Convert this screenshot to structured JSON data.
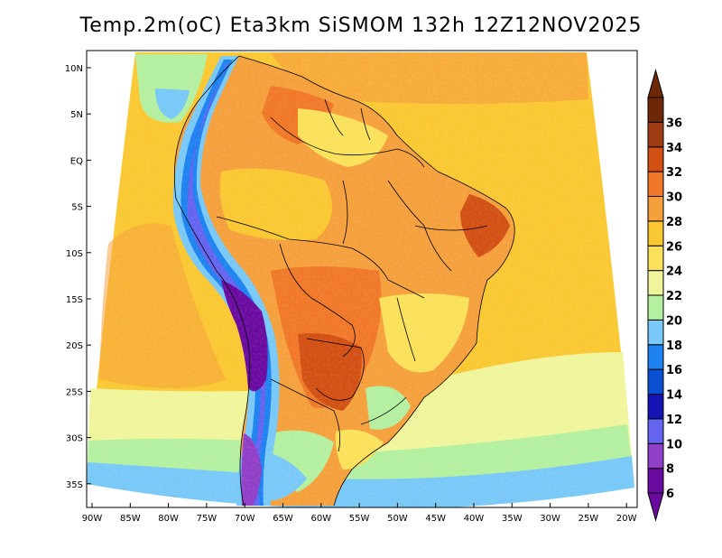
{
  "title": "Temp.2m(oC) Eta3km SiSMOM 132h 12Z12NOV2025",
  "map": {
    "lat_ticks": [
      "10N",
      "5N",
      "EQ",
      "5S",
      "10S",
      "15S",
      "20S",
      "25S",
      "30S",
      "35S"
    ],
    "lon_ticks": [
      "90W",
      "85W",
      "80W",
      "75W",
      "70W",
      "65W",
      "60W",
      "55W",
      "50W",
      "45W",
      "40W",
      "35W",
      "30W",
      "25W",
      "20W"
    ]
  },
  "colorbar": {
    "labels": [
      "6",
      "8",
      "10",
      "12",
      "14",
      "16",
      "18",
      "20",
      "22",
      "24",
      "26",
      "28",
      "30",
      "32",
      "34",
      "36"
    ],
    "colors": [
      "#6a0aa0",
      "#9040c8",
      "#6464f0",
      "#1414b4",
      "#0a50d2",
      "#1e82f0",
      "#78c8f8",
      "#b4f0a0",
      "#f0f59c",
      "#fae15a",
      "#fac832",
      "#f5a03c",
      "#f07828",
      "#d25014",
      "#a03c14",
      "#6e2808"
    ]
  }
}
